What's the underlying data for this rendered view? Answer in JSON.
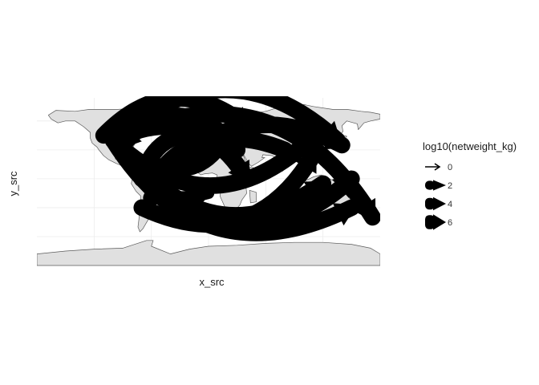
{
  "chart_data": {
    "type": "map-flow",
    "title": "",
    "xlabel": "x_src",
    "ylabel": "y_src",
    "basemap": "world",
    "colors": {
      "land": "#e0e0e0",
      "coast": "#5a5a5a",
      "grid": "#ececec",
      "flow": "#000000"
    },
    "legend": {
      "title": "log10(netweight_kg)",
      "position": "right",
      "entries": [
        {
          "label": "0",
          "value": 0
        },
        {
          "label": "2",
          "value": 2
        },
        {
          "label": "4",
          "value": 4
        },
        {
          "label": "6",
          "value": 6
        }
      ]
    },
    "flows": [
      {
        "from": [
          -100,
          40
        ],
        "to": [
          135,
          40
        ],
        "weight": 6
      },
      {
        "from": [
          -100,
          40
        ],
        "to": [
          150,
          -30
        ],
        "weight": 6
      },
      {
        "from": [
          -100,
          40
        ],
        "to": [
          172,
          -40
        ],
        "weight": 6
      },
      {
        "from": [
          -70,
          -30
        ],
        "to": [
          110,
          25
        ],
        "weight": 6
      },
      {
        "from": [
          -50,
          -15
        ],
        "to": [
          140,
          35
        ],
        "weight": 6
      },
      {
        "from": [
          10,
          50
        ],
        "to": [
          -90,
          35
        ],
        "weight": 6
      },
      {
        "from": [
          100,
          35
        ],
        "to": [
          -100,
          40
        ],
        "weight": 6
      },
      {
        "from": [
          -80,
          20
        ],
        "to": [
          120,
          -5
        ],
        "weight": 6
      },
      {
        "from": [
          -60,
          -10
        ],
        "to": [
          30,
          30
        ],
        "weight": 6
      },
      {
        "from": [
          0,
          45
        ],
        "to": [
          -70,
          0
        ],
        "weight": 6
      },
      {
        "from": [
          -110,
          45
        ],
        "to": [
          40,
          55
        ],
        "weight": 6
      },
      {
        "from": [
          -90,
          30
        ],
        "to": [
          0,
          -15
        ],
        "weight": 4
      },
      {
        "from": [
          20,
          50
        ],
        "to": [
          -60,
          15
        ],
        "weight": 6
      },
      {
        "from": [
          80,
          30
        ],
        "to": [
          -60,
          -20
        ],
        "weight": 6
      },
      {
        "from": [
          -100,
          40
        ],
        "to": [
          40,
          0
        ],
        "weight": 6
      },
      {
        "from": [
          -60,
          0
        ],
        "to": [
          150,
          0
        ],
        "weight": 6
      }
    ]
  }
}
